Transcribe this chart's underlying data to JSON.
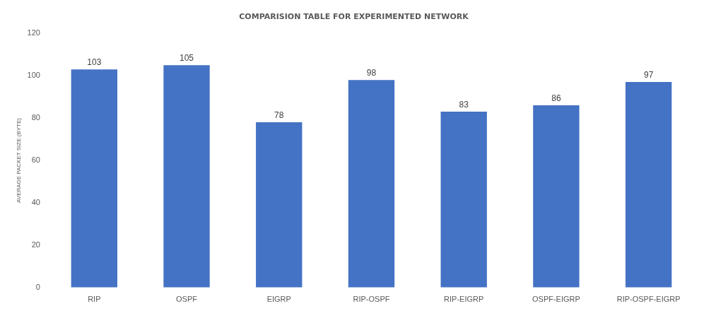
{
  "chart_data": {
    "type": "bar",
    "title": "COMPARISION TABLE FOR EXPERIMENTED NETWORK",
    "ylabel": "AVERAGE PACKET SIZE (BYTE)",
    "categories": [
      "RIP",
      "OSPF",
      "EIGRP",
      "RIP-OSPF",
      "RIP-EIGRP",
      "OSPF-EIGRP",
      "RIP-OSPF-EIGRP"
    ],
    "values": [
      103,
      105,
      78,
      98,
      83,
      86,
      97
    ],
    "color": "#4472c4",
    "ylim": [
      0,
      120
    ],
    "yticks": [
      0,
      20,
      40,
      60,
      80,
      100,
      120
    ],
    "grid": false,
    "data_labels": true
  }
}
